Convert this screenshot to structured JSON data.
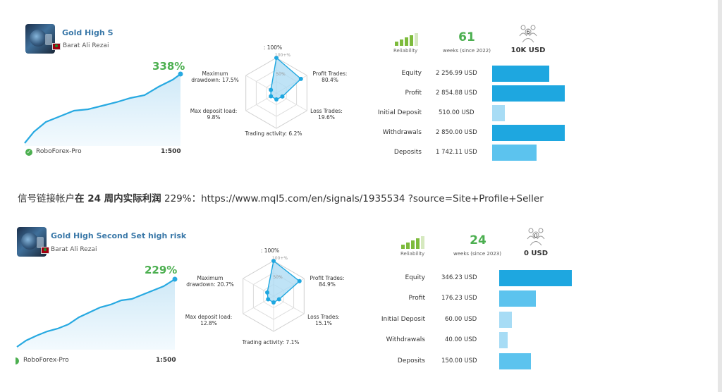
{
  "signals": [
    {
      "name": "Gold High S",
      "author": "Barat Ali Rezai",
      "growth": "338%",
      "broker": "RoboForex-Pro",
      "leverage": "1:500",
      "radar": {
        "top": ": 100%",
        "ring_100": "100+%",
        "ring_50": "50%",
        "profit_trades": "Profit Trades:\n80.4%",
        "loss_trades": "Loss Trades:\n19.6%",
        "trading_activity": "Trading activity: 6.2%",
        "max_deposit_load": "Max deposit load:\n9.8%",
        "max_drawdown": "Maximum\ndrawdown: 17.5%"
      },
      "radar_values": [
        1.0,
        0.804,
        0.196,
        0.062,
        0.098,
        0.175
      ],
      "reliability_label": "Reliability",
      "reliability_level": 4,
      "weeks": "61",
      "weeks_label": "weeks (since 2022)",
      "subscribers": "6",
      "subscriptions_value": "10K USD",
      "financials": [
        {
          "label": "Equity",
          "value": "2 256.99 USD",
          "amount": 2256.99
        },
        {
          "label": "Profit",
          "value": "2 854.88 USD",
          "amount": 2854.88
        },
        {
          "label": "Initial Deposit",
          "value": "510.00 USD",
          "amount": 510.0
        },
        {
          "label": "Withdrawals",
          "value": "2 850.00 USD",
          "amount": 2850.0
        },
        {
          "label": "Deposits",
          "value": "1 742.11 USD",
          "amount": 1742.11
        }
      ]
    },
    {
      "name": "Gold High Second Set high risk",
      "author": "Barat Ali Rezai",
      "growth": "229%",
      "broker": "RoboForex-Pro",
      "leverage": "1:500",
      "radar": {
        "top": ": 100%",
        "ring_100": "100+%",
        "ring_50": "50%",
        "profit_trades": "Profit Trades:\n84.9%",
        "loss_trades": "Loss Trades:\n15.1%",
        "trading_activity": "Trading activity: 7.1%",
        "max_deposit_load": "Max deposit load:\n12.8%",
        "max_drawdown": "Maximum\ndrawdown: 20.7%"
      },
      "radar_values": [
        1.0,
        0.849,
        0.151,
        0.071,
        0.128,
        0.207
      ],
      "reliability_label": "Reliability",
      "reliability_level": 4,
      "weeks": "24",
      "weeks_label": "weeks (since 2023)",
      "subscribers": "0",
      "subscriptions_value": "0 USD",
      "financials": [
        {
          "label": "Equity",
          "value": "346.23 USD",
          "amount": 346.23
        },
        {
          "label": "Profit",
          "value": "176.23 USD",
          "amount": 176.23
        },
        {
          "label": "Initial Deposit",
          "value": "60.00 USD",
          "amount": 60.0
        },
        {
          "label": "Withdrawals",
          "value": "40.00 USD",
          "amount": 40.0
        },
        {
          "label": "Deposits",
          "value": "150.00 USD",
          "amount": 150.0
        }
      ]
    }
  ],
  "link_text_prefix": "信号链接帐户",
  "link_text_bold": "在 24 周内实际利润",
  "link_text_suffix": " 229%：https://www.mql5.com/en/signals/1935534 ?source=Site+Profile+Seller",
  "colors": {
    "accent_green": "#4caf50",
    "accent_blue": "#1ea7e0",
    "name_blue": "#3a78a8"
  }
}
